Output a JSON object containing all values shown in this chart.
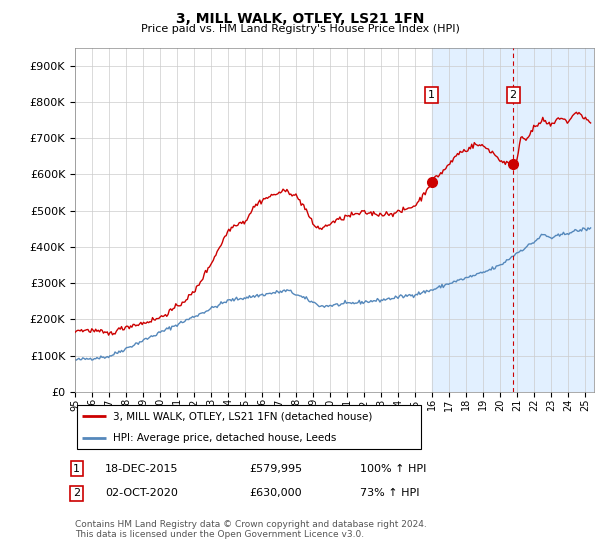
{
  "title": "3, MILL WALK, OTLEY, LS21 1FN",
  "subtitle": "Price paid vs. HM Land Registry's House Price Index (HPI)",
  "legend_line1": "3, MILL WALK, OTLEY, LS21 1FN (detached house)",
  "legend_line2": "HPI: Average price, detached house, Leeds",
  "footnote": "Contains HM Land Registry data © Crown copyright and database right 2024.\nThis data is licensed under the Open Government Licence v3.0.",
  "sale1_date": "18-DEC-2015",
  "sale1_price": "£579,995",
  "sale1_hpi": "100% ↑ HPI",
  "sale2_date": "02-OCT-2020",
  "sale2_price": "£630,000",
  "sale2_hpi": "73% ↑ HPI",
  "sale1_year": 2015.96,
  "sale1_value": 579995,
  "sale2_year": 2020.75,
  "sale2_value": 630000,
  "red_color": "#cc0000",
  "blue_color": "#5588bb",
  "highlight_bg": "#ddeeff",
  "ylim_min": 0,
  "ylim_max": 950000,
  "xlim_min": 1995.0,
  "xlim_max": 2025.5
}
